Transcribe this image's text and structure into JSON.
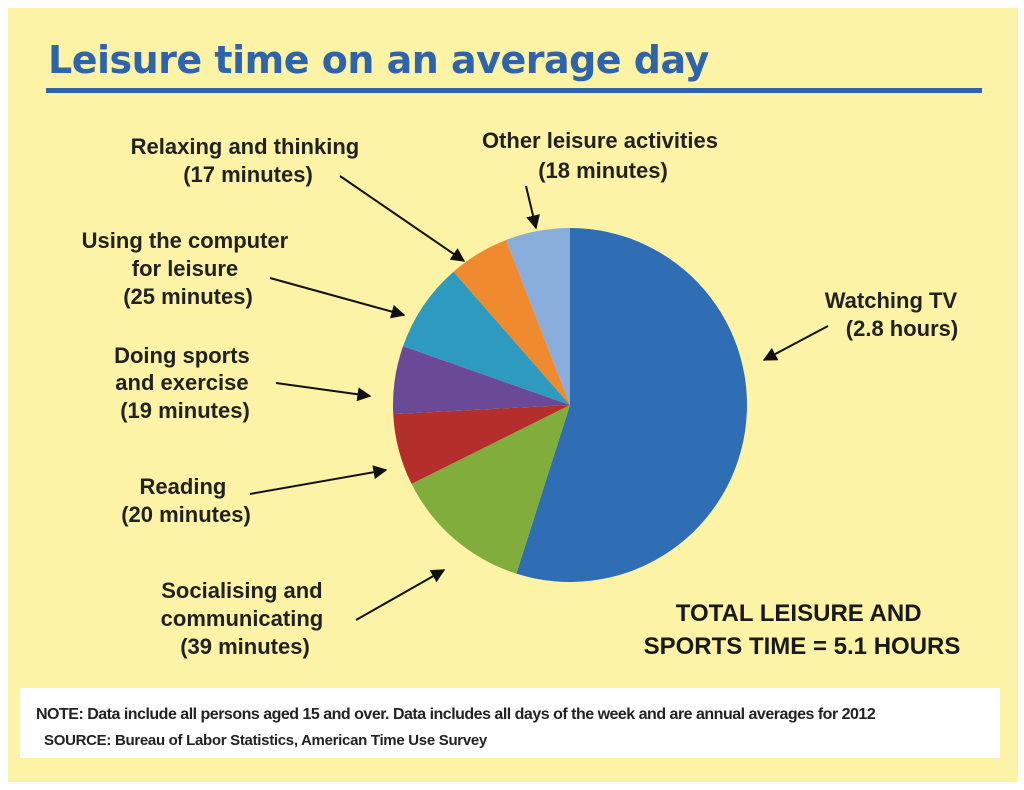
{
  "chart_data": {
    "type": "pie",
    "title": "Leisure time on an average day",
    "slices": [
      {
        "label": "Watching TV",
        "value_text": "(2.8 hours)",
        "minutes": 168,
        "color": "#2f6db4"
      },
      {
        "label": "Socialising and communicating",
        "value_text": "(39 minutes)",
        "minutes": 39,
        "color": "#80ad3c"
      },
      {
        "label": "Reading",
        "value_text": "(20 minutes)",
        "minutes": 20,
        "color": "#b42e2c"
      },
      {
        "label": "Doing sports and exercise",
        "value_text": "(19 minutes)",
        "minutes": 19,
        "color": "#6a4a96"
      },
      {
        "label": "Using the computer for leisure",
        "value_text": "(25 minutes)",
        "minutes": 25,
        "color": "#2f9ac0"
      },
      {
        "label": "Relaxing and thinking",
        "value_text": "(17 minutes)",
        "minutes": 17,
        "color": "#ef8a2e"
      },
      {
        "label": "Other leisure activities",
        "value_text": "(18 minutes)",
        "minutes": 18,
        "color": "#8aaedc"
      }
    ],
    "total_text": [
      "TOTAL LEISURE AND",
      "SPORTS TIME = 5.1 HOURS"
    ]
  },
  "labels": {
    "watching_tv": [
      "Watching TV",
      "(2.8 hours)"
    ],
    "socialising": [
      "Socialising and",
      "communicating",
      "(39 minutes)"
    ],
    "reading": [
      "Reading",
      "(20 minutes)"
    ],
    "sports": [
      "Doing sports",
      "and exercise",
      "(19 minutes)"
    ],
    "computer": [
      "Using the computer",
      "for leisure",
      "(25 minutes)"
    ],
    "relaxing": [
      "Relaxing and thinking",
      "(17 minutes)"
    ],
    "other": [
      "Other leisure activities",
      "(18 minutes)"
    ]
  },
  "note": "NOTE: Data include all persons aged 15 and over. Data includes all days of the week and are annual averages for 2012",
  "source": "SOURCE: Bureau of Labor Statistics, American Time Use Survey",
  "colors": {
    "background": "#fcf3a6",
    "title": "#2f64ad"
  }
}
